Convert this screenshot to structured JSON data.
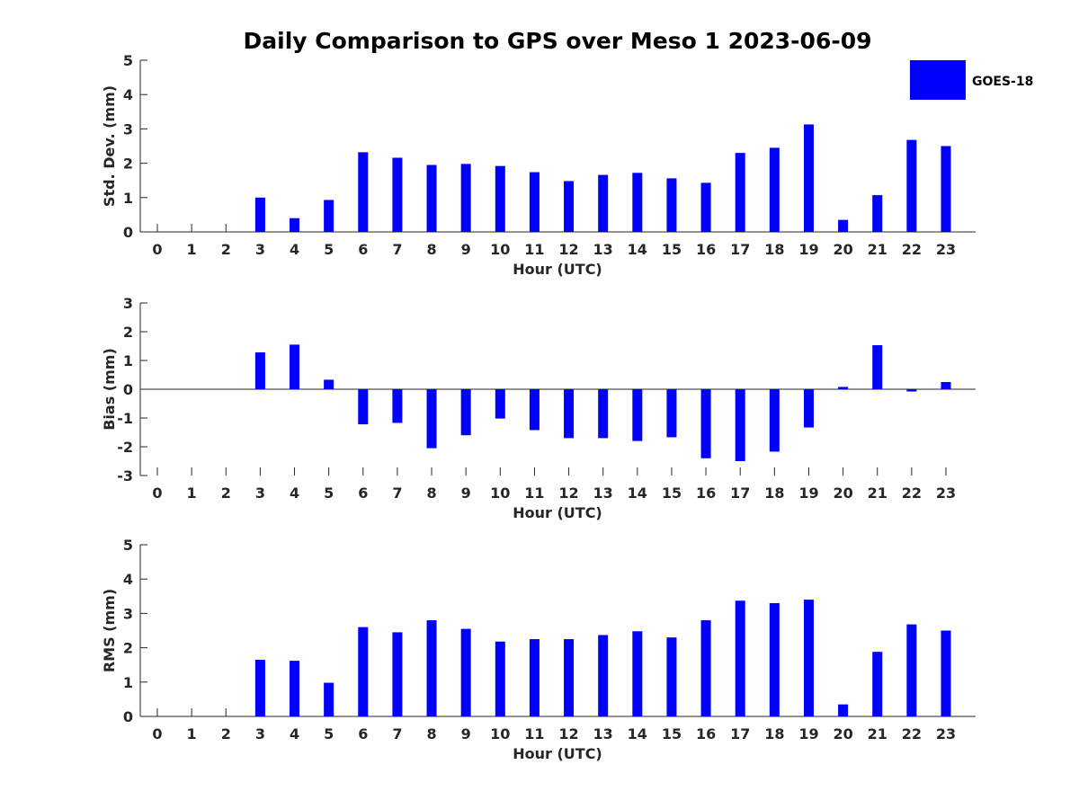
{
  "title": "Daily Comparison to GPS over Meso 1 2023-06-09",
  "legend": {
    "label": "GOES-18",
    "color": "#0000ff",
    "placement": "top-right"
  },
  "chart_data": [
    {
      "type": "bar",
      "xlabel": "Hour (UTC)",
      "ylabel": "Std. Dev. (mm)",
      "ylim": [
        0,
        5
      ],
      "yticks": [
        0,
        1,
        2,
        3,
        4,
        5
      ],
      "categories": [
        "0",
        "1",
        "2",
        "3",
        "4",
        "5",
        "6",
        "7",
        "8",
        "9",
        "10",
        "11",
        "12",
        "13",
        "14",
        "15",
        "16",
        "17",
        "18",
        "19",
        "20",
        "21",
        "22",
        "23"
      ],
      "series": [
        {
          "name": "GOES-18",
          "color": "#0000ff",
          "values": [
            null,
            null,
            null,
            1.0,
            0.4,
            0.93,
            2.32,
            2.16,
            1.95,
            1.98,
            1.92,
            1.74,
            1.48,
            1.66,
            1.72,
            1.56,
            1.43,
            2.3,
            2.45,
            3.13,
            0.35,
            1.07,
            2.68,
            2.5
          ]
        }
      ]
    },
    {
      "type": "bar",
      "xlabel": "Hour (UTC)",
      "ylabel": "Bias (mm)",
      "ylim": [
        -3,
        3
      ],
      "yticks": [
        -3,
        -2,
        -1,
        0,
        1,
        2,
        3
      ],
      "categories": [
        "0",
        "1",
        "2",
        "3",
        "4",
        "5",
        "6",
        "7",
        "8",
        "9",
        "10",
        "11",
        "12",
        "13",
        "14",
        "15",
        "16",
        "17",
        "18",
        "19",
        "20",
        "21",
        "22",
        "23"
      ],
      "series": [
        {
          "name": "GOES-18",
          "color": "#0000ff",
          "values": [
            null,
            null,
            null,
            1.28,
            1.55,
            0.33,
            -1.22,
            -1.17,
            -2.05,
            -1.6,
            -1.02,
            -1.42,
            -1.7,
            -1.7,
            -1.8,
            -1.67,
            -2.4,
            -2.5,
            -2.17,
            -1.33,
            0.08,
            1.53,
            -0.08,
            0.25
          ]
        }
      ]
    },
    {
      "type": "bar",
      "xlabel": "Hour (UTC)",
      "ylabel": "RMS (mm)",
      "ylim": [
        0,
        5
      ],
      "yticks": [
        0,
        1,
        2,
        3,
        4,
        5
      ],
      "categories": [
        "0",
        "1",
        "2",
        "3",
        "4",
        "5",
        "6",
        "7",
        "8",
        "9",
        "10",
        "11",
        "12",
        "13",
        "14",
        "15",
        "16",
        "17",
        "18",
        "19",
        "20",
        "21",
        "22",
        "23"
      ],
      "series": [
        {
          "name": "GOES-18",
          "color": "#0000ff",
          "values": [
            null,
            null,
            null,
            1.65,
            1.62,
            0.98,
            2.6,
            2.45,
            2.8,
            2.55,
            2.18,
            2.25,
            2.25,
            2.37,
            2.48,
            2.3,
            2.8,
            3.37,
            3.3,
            3.4,
            0.35,
            1.88,
            2.68,
            2.5
          ]
        }
      ]
    }
  ]
}
